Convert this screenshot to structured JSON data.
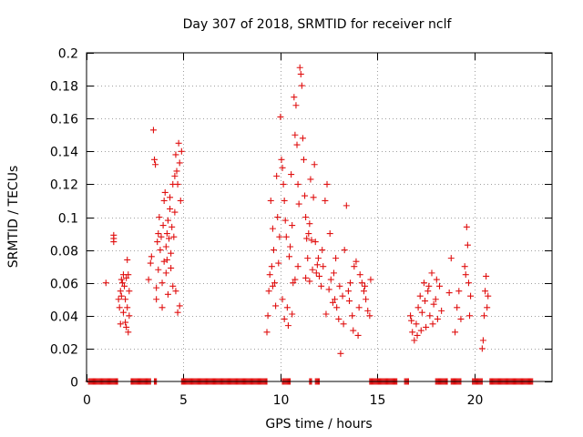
{
  "chart_data": {
    "type": "scatter",
    "title": "Day 307 of 2018, SRMTID for receiver nclf",
    "xlabel": "GPS time / hours",
    "ylabel": "SRMTID / TECUs",
    "xlim": [
      0,
      24
    ],
    "ylim": [
      0,
      0.2
    ],
    "xticks": [
      0,
      5,
      10,
      15,
      20
    ],
    "xtick_labels": [
      "0",
      "5",
      "10",
      "15",
      "20"
    ],
    "yticks": [
      0,
      0.02,
      0.04,
      0.06,
      0.08,
      0.1,
      0.12,
      0.14,
      0.16,
      0.18,
      0.2
    ],
    "ytick_labels": [
      "0",
      "0.02",
      "0.04",
      "0.06",
      "0.08",
      "0.1",
      "0.12",
      "0.14",
      "0.16",
      "0.18",
      "0.2"
    ],
    "grid": true,
    "marker": "+",
    "series_color": "#e01010",
    "series": [
      {
        "name": "SRMTID",
        "points": [
          [
            1.0,
            0.06
          ],
          [
            1.4,
            0.089
          ],
          [
            1.4,
            0.085
          ],
          [
            1.4,
            0.087
          ],
          [
            1.65,
            0.05
          ],
          [
            1.7,
            0.045
          ],
          [
            1.75,
            0.055
          ],
          [
            1.8,
            0.052
          ],
          [
            1.85,
            0.06
          ],
          [
            1.9,
            0.065
          ],
          [
            1.9,
            0.042
          ],
          [
            1.95,
            0.058
          ],
          [
            2.0,
            0.05
          ],
          [
            2.0,
            0.036
          ],
          [
            2.05,
            0.063
          ],
          [
            2.1,
            0.074
          ],
          [
            2.1,
            0.045
          ],
          [
            2.15,
            0.03
          ],
          [
            2.2,
            0.055
          ],
          [
            2.2,
            0.04
          ],
          [
            1.75,
            0.035
          ],
          [
            1.8,
            0.062
          ],
          [
            2.05,
            0.033
          ],
          [
            2.15,
            0.065
          ],
          [
            3.2,
            0.062
          ],
          [
            3.3,
            0.072
          ],
          [
            3.35,
            0.076
          ],
          [
            3.45,
            0.153
          ],
          [
            3.5,
            0.135
          ],
          [
            3.55,
            0.132
          ],
          [
            3.6,
            0.05
          ],
          [
            3.6,
            0.057
          ],
          [
            3.65,
            0.085
          ],
          [
            3.7,
            0.09
          ],
          [
            3.75,
            0.1
          ],
          [
            3.8,
            0.08
          ],
          [
            3.85,
            0.088
          ],
          [
            3.9,
            0.06
          ],
          [
            3.95,
            0.095
          ],
          [
            4.0,
            0.11
          ],
          [
            4.0,
            0.073
          ],
          [
            4.05,
            0.115
          ],
          [
            4.1,
            0.082
          ],
          [
            4.1,
            0.066
          ],
          [
            4.15,
            0.09
          ],
          [
            4.2,
            0.098
          ],
          [
            4.2,
            0.053
          ],
          [
            4.25,
            0.087
          ],
          [
            4.3,
            0.105
          ],
          [
            4.3,
            0.112
          ],
          [
            4.35,
            0.078
          ],
          [
            4.4,
            0.094
          ],
          [
            4.45,
            0.12
          ],
          [
            4.45,
            0.058
          ],
          [
            4.5,
            0.088
          ],
          [
            4.55,
            0.125
          ],
          [
            4.55,
            0.103
          ],
          [
            4.6,
            0.138
          ],
          [
            4.65,
            0.128
          ],
          [
            4.7,
            0.12
          ],
          [
            4.7,
            0.042
          ],
          [
            4.75,
            0.145
          ],
          [
            4.8,
            0.133
          ],
          [
            4.8,
            0.046
          ],
          [
            4.85,
            0.11
          ],
          [
            4.9,
            0.14
          ],
          [
            3.7,
            0.068
          ],
          [
            3.9,
            0.045
          ],
          [
            4.15,
            0.074
          ],
          [
            4.35,
            0.069
          ],
          [
            4.6,
            0.055
          ],
          [
            9.3,
            0.03
          ],
          [
            9.35,
            0.04
          ],
          [
            9.4,
            0.055
          ],
          [
            9.45,
            0.065
          ],
          [
            9.5,
            0.11
          ],
          [
            9.55,
            0.07
          ],
          [
            9.6,
            0.093
          ],
          [
            9.65,
            0.08
          ],
          [
            9.7,
            0.06
          ],
          [
            9.75,
            0.046
          ],
          [
            9.8,
            0.125
          ],
          [
            9.85,
            0.1
          ],
          [
            9.9,
            0.072
          ],
          [
            9.95,
            0.088
          ],
          [
            10.0,
            0.161
          ],
          [
            10.05,
            0.135
          ],
          [
            10.1,
            0.13
          ],
          [
            10.15,
            0.12
          ],
          [
            10.2,
            0.11
          ],
          [
            10.25,
            0.098
          ],
          [
            10.3,
            0.088
          ],
          [
            10.35,
            0.045
          ],
          [
            10.4,
            0.034
          ],
          [
            10.45,
            0.076
          ],
          [
            10.5,
            0.082
          ],
          [
            10.55,
            0.126
          ],
          [
            10.6,
            0.095
          ],
          [
            10.65,
            0.06
          ],
          [
            10.7,
            0.173
          ],
          [
            10.75,
            0.15
          ],
          [
            10.8,
            0.168
          ],
          [
            10.85,
            0.144
          ],
          [
            10.9,
            0.12
          ],
          [
            10.95,
            0.108
          ],
          [
            11.0,
            0.191
          ],
          [
            11.05,
            0.187
          ],
          [
            11.1,
            0.18
          ],
          [
            11.15,
            0.148
          ],
          [
            11.2,
            0.135
          ],
          [
            11.25,
            0.113
          ],
          [
            11.3,
            0.1
          ],
          [
            11.35,
            0.087
          ],
          [
            11.4,
            0.075
          ],
          [
            11.45,
            0.09
          ],
          [
            11.5,
            0.096
          ],
          [
            11.55,
            0.123
          ],
          [
            11.6,
            0.086
          ],
          [
            11.65,
            0.068
          ],
          [
            11.7,
            0.112
          ],
          [
            11.75,
            0.132
          ],
          [
            11.8,
            0.085
          ],
          [
            11.85,
            0.066
          ],
          [
            11.9,
            0.071
          ],
          [
            11.95,
            0.075
          ],
          [
            10.1,
            0.05
          ],
          [
            10.6,
            0.041
          ],
          [
            10.9,
            0.07
          ],
          [
            11.3,
            0.063
          ],
          [
            11.5,
            0.061
          ],
          [
            10.2,
            0.038
          ],
          [
            9.6,
            0.058
          ],
          [
            10.75,
            0.062
          ],
          [
            12.0,
            0.064
          ],
          [
            12.1,
            0.058
          ],
          [
            12.2,
            0.07
          ],
          [
            12.3,
            0.11
          ],
          [
            12.4,
            0.12
          ],
          [
            12.5,
            0.056
          ],
          [
            12.6,
            0.062
          ],
          [
            12.7,
            0.048
          ],
          [
            12.8,
            0.05
          ],
          [
            12.9,
            0.045
          ],
          [
            13.0,
            0.038
          ],
          [
            13.1,
            0.017
          ],
          [
            13.2,
            0.052
          ],
          [
            13.3,
            0.08
          ],
          [
            13.4,
            0.107
          ],
          [
            13.5,
            0.055
          ],
          [
            13.6,
            0.06
          ],
          [
            13.7,
            0.04
          ],
          [
            13.8,
            0.07
          ],
          [
            13.9,
            0.073
          ],
          [
            14.0,
            0.028
          ],
          [
            14.1,
            0.065
          ],
          [
            14.2,
            0.06
          ],
          [
            14.3,
            0.055
          ],
          [
            14.4,
            0.05
          ],
          [
            14.5,
            0.043
          ],
          [
            14.6,
            0.04
          ],
          [
            14.65,
            0.062
          ],
          [
            12.35,
            0.041
          ],
          [
            12.75,
            0.066
          ],
          [
            13.25,
            0.035
          ],
          [
            13.75,
            0.031
          ],
          [
            14.05,
            0.045
          ],
          [
            14.35,
            0.058
          ],
          [
            12.55,
            0.09
          ],
          [
            13.05,
            0.058
          ],
          [
            13.55,
            0.049
          ],
          [
            12.15,
            0.08
          ],
          [
            12.85,
            0.075
          ],
          [
            16.7,
            0.04
          ],
          [
            16.8,
            0.03
          ],
          [
            16.9,
            0.025
          ],
          [
            17.0,
            0.035
          ],
          [
            17.1,
            0.045
          ],
          [
            17.2,
            0.052
          ],
          [
            17.3,
            0.042
          ],
          [
            17.4,
            0.06
          ],
          [
            17.5,
            0.033
          ],
          [
            17.6,
            0.055
          ],
          [
            17.7,
            0.04
          ],
          [
            17.8,
            0.066
          ],
          [
            17.9,
            0.047
          ],
          [
            18.0,
            0.05
          ],
          [
            18.1,
            0.038
          ],
          [
            18.2,
            0.058
          ],
          [
            18.3,
            0.043
          ],
          [
            16.75,
            0.037
          ],
          [
            17.05,
            0.028
          ],
          [
            17.25,
            0.031
          ],
          [
            17.45,
            0.049
          ],
          [
            17.65,
            0.058
          ],
          [
            17.85,
            0.035
          ],
          [
            18.05,
            0.062
          ],
          [
            18.7,
            0.054
          ],
          [
            18.8,
            0.075
          ],
          [
            19.0,
            0.03
          ],
          [
            19.1,
            0.045
          ],
          [
            19.2,
            0.055
          ],
          [
            19.3,
            0.038
          ],
          [
            19.5,
            0.07
          ],
          [
            19.55,
            0.065
          ],
          [
            19.6,
            0.094
          ],
          [
            19.65,
            0.083
          ],
          [
            19.7,
            0.06
          ],
          [
            19.75,
            0.04
          ],
          [
            19.8,
            0.052
          ],
          [
            20.4,
            0.02
          ],
          [
            20.45,
            0.025
          ],
          [
            20.5,
            0.04
          ],
          [
            20.55,
            0.055
          ],
          [
            20.6,
            0.064
          ],
          [
            20.65,
            0.045
          ],
          [
            20.7,
            0.052
          ]
        ],
        "zero_intervals": [
          [
            0.1,
            1.6
          ],
          [
            2.3,
            3.3
          ],
          [
            3.5,
            3.6
          ],
          [
            4.9,
            9.3
          ],
          [
            10.1,
            10.5
          ],
          [
            11.5,
            11.6
          ],
          [
            11.8,
            12.0
          ],
          [
            14.6,
            16.0
          ],
          [
            16.4,
            16.6
          ],
          [
            18.0,
            18.6
          ],
          [
            18.8,
            19.3
          ],
          [
            19.9,
            20.4
          ],
          [
            20.8,
            23.0
          ]
        ]
      }
    ]
  }
}
